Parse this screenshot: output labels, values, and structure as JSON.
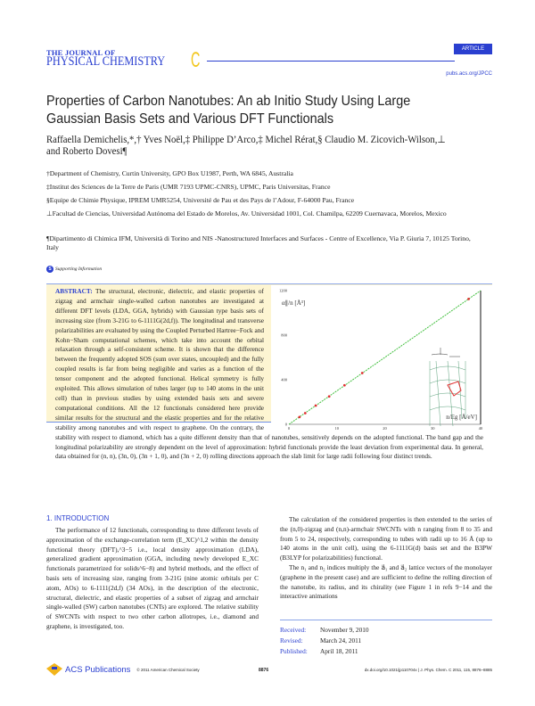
{
  "header": {
    "journal_top": "THE JOURNAL OF",
    "journal_main": "PHYSICAL CHEMISTRY",
    "journal_letter": "C",
    "badge": "ARTICLE",
    "url": "pubs.acs.org/JPCC"
  },
  "title": "Properties of Carbon Nanotubes: An ab Initio Study Using Large Gaussian Basis Sets and Various DFT Functionals",
  "authors": "Raffaella Demichelis,*,† Yves Noël,‡ Philippe D’Arco,‡ Michel Rérat,§ Claudio M. Zicovich-Wilson,⊥ and Roberto Dovesi¶",
  "affiliations": [
    "†Department of Chemistry, Curtin University, GPO Box U1987, Perth, WA 6845, Australia",
    "‡Institut des Sciences de la Terre de Paris (UMR 7193 UPMC-CNRS), UPMC, Paris Universitas, France",
    "§Equipe de Chimie Physique, IPREM UMR5254, Université de Pau et des Pays de l’Adour, F-64000 Pau, France",
    "⊥Facultad de Ciencias, Universidad Autónoma del Estado de Morelos, Av. Universidad 1001, Col. Chamilpa, 62209 Cuernavaca, Morelos, Mexico",
    "¶Dipartimento di Chimica IFM, Università di Torino and NIS -Nanostructured Interfaces and Surfaces - Centre of Excellence, Via P. Giuria 7, 10125 Torino, Italy"
  ],
  "supporting_info": {
    "icon": "S",
    "label": "Supporting Information"
  },
  "abstract": {
    "label": "ABSTRACT:",
    "text": "The structural, electronic, dielectric, and elastic properties of zigzag and armchair single-walled carbon nanotubes are investigated at different DFT levels (LDA, GGA, hybrids) with Gaussian type basis sets of increasing size (from 3-21G to 6-1111G(2d,f)). The longitudinal and transverse polarizabilities are evaluated by using the Coupled Perturbed Hartree−Fock and Kohn−Sham computational schemes, which take into account the orbital relaxation through a self-consistent scheme. It is shown that the difference between the frequently adopted SOS (sum over states, uncoupled) and the fully coupled results is far from being negligible and varies as a function of the tensor component and the adopted functional. Helical symmetry is fully exploited. This allows simulation of tubes larger (up to 140 atoms in the unit cell) than in previous studies by using extended basis sets and severe computational conditions. All the 12 functionals considered here provide similar results for the structural and the elastic properties and for the relative stability among nanotubes and with respect to graphene. On the contrary, the stability with respect to diamond, which has a quite different density than that of nanotubes, sensitively depends on the adopted functional. The band gap and the longitudinal polarizability are strongly dependent on the level of approximation: hybrid functionals provide the least deviation from experimental data. In general, data obtained for (n, n), (3n, 0), (3n + 1, 0), and (3n + 2, 0) rolling directions approach the slab limit for large radii following four distinct trends."
  },
  "chart_data": {
    "type": "scatter",
    "xlabel": "n/Eg [Å/eV]",
    "ylabel": "α∥/n [Å³]",
    "xlim": [
      0,
      40
    ],
    "ylim": [
      0,
      1200
    ],
    "xticks": [
      "0",
      "10",
      "20",
      "30",
      "40"
    ],
    "yticks": [
      "0",
      "400",
      "800",
      "1200"
    ],
    "x": [
      2.2,
      3.4,
      5.6,
      8.4,
      11.6,
      15.3,
      37.5
    ],
    "y": [
      65,
      100,
      168,
      250,
      350,
      460,
      1125
    ],
    "fit_line": {
      "x": [
        0,
        40
      ],
      "y": [
        0,
        1200
      ]
    },
    "point_color": "#e03030",
    "line_color": "#44c040",
    "grid": false
  },
  "intro": {
    "heading": "1. INTRODUCTION",
    "left": "The performance of 12 functionals, corresponding to three different levels of approximation of the exchange-correlation term (E_XC)^1,2 within the density functional theory (DFT),^3−5 i.e., local density approximation (LDA), generalized gradient approximation (GGA, including newly developed E_XC functionals parametrized for solids^6−8) and hybrid methods, and the effect of basis sets of increasing size, ranging from 3-21G (nine atomic orbitals per C atom, AOs) to 6-1111(2d,f) (34 AOs), in the description of the electronic, structural, dielectric, and elastic properties of a subset of zigzag and armchair single-walled (SW) carbon nanotubes (CNTs) are explored. The relative stability of SWCNTs with respect to two other carbon allotropes, i.e., diamond and graphene, is investigated, too.",
    "right_p1": "The calculation of the considered properties is then extended to the series of the (n,0)-zigzag and (n,n)-armchair SWCNTs with n ranging from 8 to 35 and from 5 to 24, respectively, corresponding to tubes with radii up to 16 Å (up to 140 atoms in the unit cell), using the 6-1111G(d) basis set and the B3PW (B3LYP for polarizabilities) functional.",
    "right_p2": "The n₁ and n₂ indices multiply the a⃗₁ and a⃗₂ lattice vectors of the monolayer (graphene in the present case) and are sufficient to define the rolling direction of the nanotube, its radius, and its chirality (see Figure 1 in refs 9−14 and the interactive animations"
  },
  "dates": [
    {
      "k": "Received:",
      "v": "November 9, 2010"
    },
    {
      "k": "Revised:",
      "v": "March 24, 2011"
    },
    {
      "k": "Published:",
      "v": "April 18, 2011"
    }
  ],
  "footer": {
    "publisher": "ACS Publications",
    "copyright": "© 2011 American Chemical Society",
    "page": "8876",
    "doi": "dx.doi.org/10.1021/jp110704x | J. Phys. Chem. C 2011, 115, 8876–8885"
  }
}
